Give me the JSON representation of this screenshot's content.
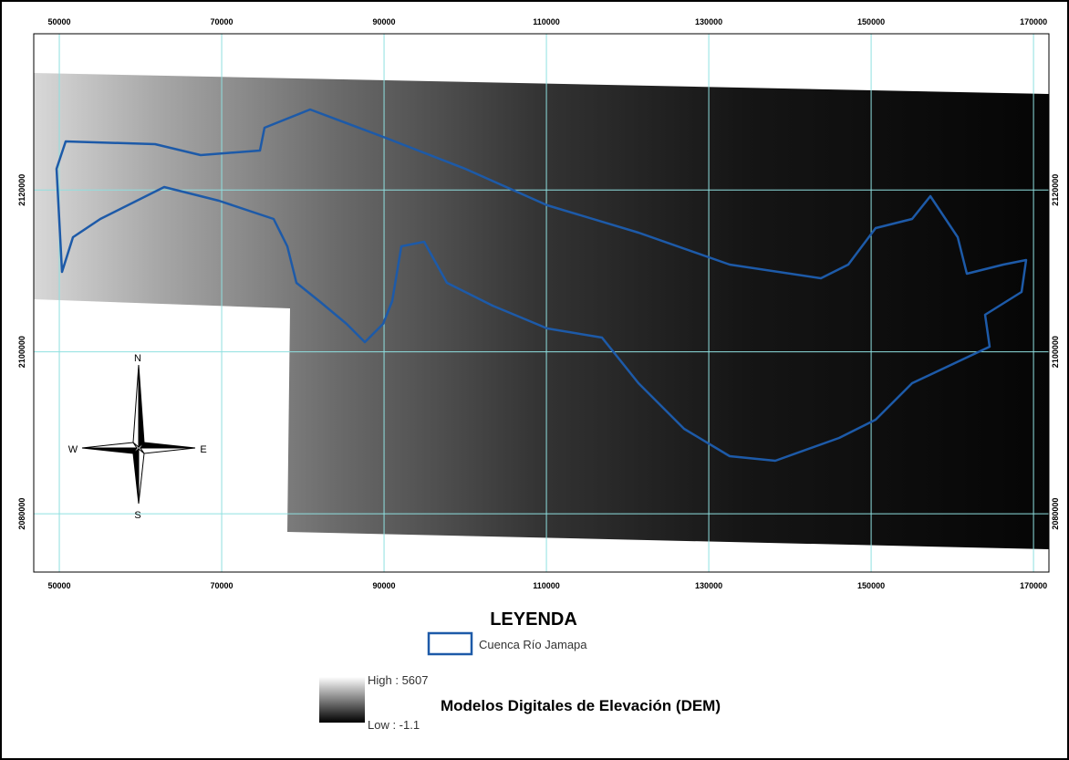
{
  "map": {
    "xlim": [
      46850,
      171900
    ],
    "ylim": [
      2072800,
      2139300
    ],
    "xticks": [
      50000,
      70000,
      90000,
      110000,
      130000,
      150000,
      170000
    ],
    "yticks": [
      2120000,
      2100000,
      2080000
    ],
    "compass": {
      "north": "N",
      "south": "S",
      "east": "E",
      "west": "W"
    },
    "legend": {
      "title": "LEYENDA",
      "basin": "Cuenca Río Jamapa",
      "high": "High : 5607",
      "low": "Low : -1.1",
      "dem": "Modelos Digitales de Elevación (DEM)"
    }
  }
}
